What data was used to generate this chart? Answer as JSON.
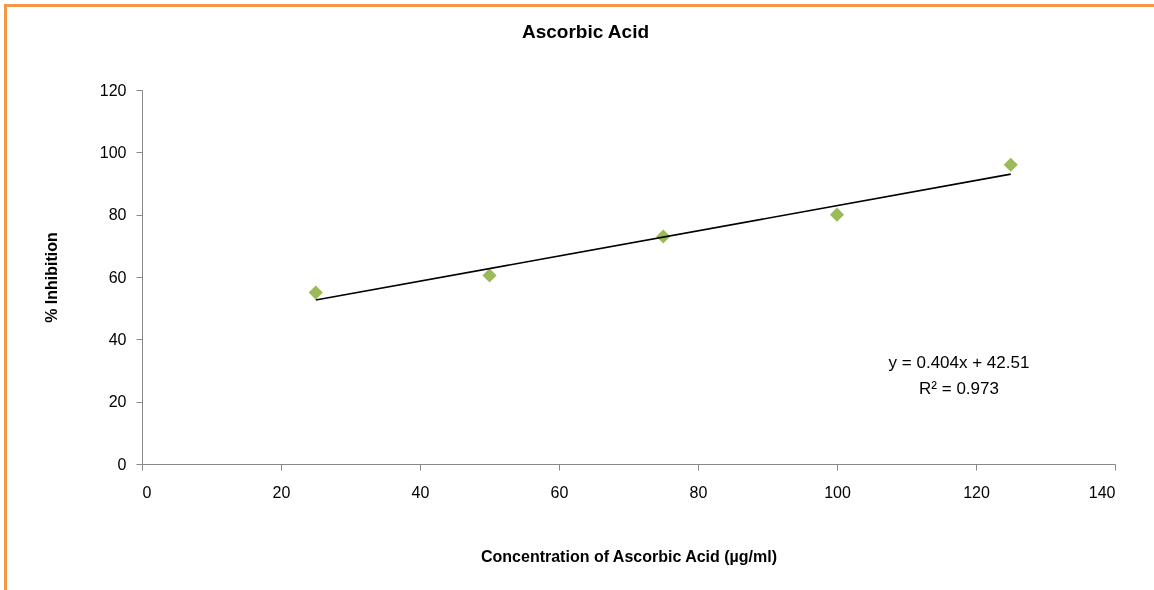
{
  "chart_data": {
    "type": "scatter",
    "title": "Ascorbic Acid",
    "xlabel": "Concentration of Ascorbic Acid (µg/ml)",
    "ylabel": "% Inhibition",
    "x": [
      25,
      50,
      75,
      100,
      125
    ],
    "series": [
      {
        "color": "#9bbb59",
        "marker": "diamond",
        "values": [
          55,
          60.5,
          73,
          80,
          96
        ]
      },
      {
        "type": "line",
        "color": "#000000",
        "marker": "none",
        "x": [
          25,
          125
        ],
        "values": [
          52.6,
          93
        ]
      }
    ],
    "xlim": [
      0,
      140
    ],
    "xticks": [
      0,
      20,
      40,
      60,
      80,
      100,
      120,
      140
    ],
    "ylim": [
      0,
      120
    ],
    "yticks": [
      0,
      20,
      40,
      60,
      80,
      100,
      120
    ],
    "grid": false,
    "annotations": [
      "y = 0.404x + 42.51",
      "R² = 0.973"
    ]
  }
}
